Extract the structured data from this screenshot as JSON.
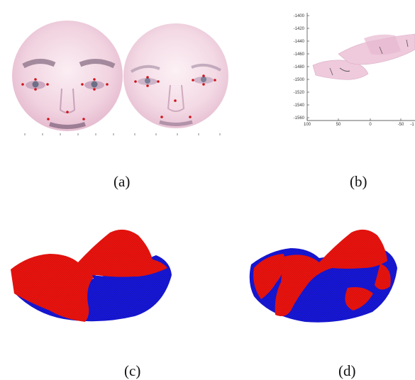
{
  "captions": {
    "a": "(a)",
    "b": "(b)",
    "c": "(c)",
    "d": "(d)"
  },
  "panel_b": {
    "y_ticks": [
      "-1400",
      "-1420",
      "-1440",
      "-1460",
      "-1480",
      "-1500",
      "-1520",
      "-1540",
      "-1560"
    ],
    "x_ticks": [
      "100",
      "50",
      "0",
      "-50",
      "-1"
    ]
  },
  "colors": {
    "face_skin": "#f3d8e4",
    "landmark": "#d0141c",
    "mesh_red": "#e8140f",
    "mesh_blue": "#1818d8"
  }
}
